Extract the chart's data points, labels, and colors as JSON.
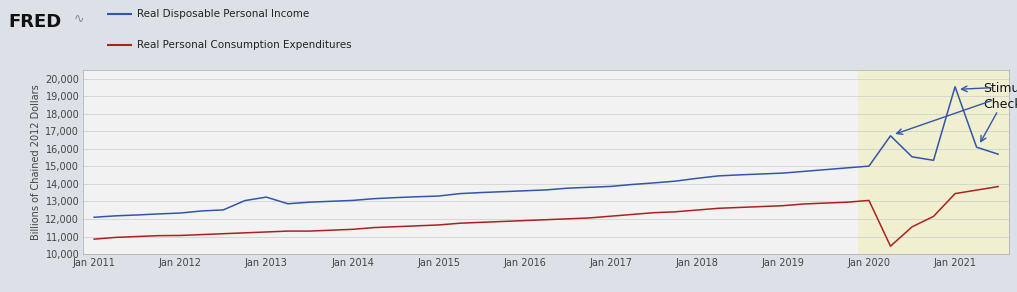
{
  "ylabel": "Billions of Chained 2012 Dollars",
  "ylim": [
    10000,
    20500
  ],
  "yticks": [
    10000,
    11000,
    12000,
    13000,
    14000,
    15000,
    16000,
    17000,
    18000,
    19000,
    20000
  ],
  "line1_label": "Real Disposable Personal Income",
  "line1_color": "#3355aa",
  "line2_label": "Real Personal Consumption Expenditures",
  "line2_color": "#aa2222",
  "background_color": "#dce1e8",
  "plot_bg_color": "#f2f2f2",
  "highlight_bg_color": "#f0f0d0",
  "stimulus_text": "Stimulus\nChecks",
  "income": [
    12100,
    12180,
    12230,
    12290,
    12340,
    12460,
    12520,
    13050,
    13250,
    12870,
    12960,
    13010,
    13060,
    13160,
    13220,
    13270,
    13310,
    13450,
    13510,
    13560,
    13610,
    13660,
    13760,
    13810,
    13860,
    13970,
    14060,
    14160,
    14320,
    14460,
    14520,
    14570,
    14620,
    14720,
    14820,
    14920,
    15020,
    16750,
    15550,
    15350,
    19550,
    16100,
    15700
  ],
  "expenditures": [
    10850,
    10950,
    11000,
    11050,
    11060,
    11110,
    11160,
    11210,
    11260,
    11310,
    11310,
    11360,
    11410,
    11510,
    11560,
    11610,
    11660,
    11760,
    11810,
    11860,
    11910,
    11960,
    12010,
    12060,
    12160,
    12260,
    12360,
    12410,
    12510,
    12610,
    12660,
    12710,
    12760,
    12860,
    12910,
    12960,
    13060,
    10450,
    11550,
    12150,
    13450,
    13650,
    13850
  ],
  "xtick_labels": [
    "Jan 2011",
    "Jan 2012",
    "Jan 2013",
    "Jan 2014",
    "Jan 2015",
    "Jan 2016",
    "Jan 2017",
    "Jan 2018",
    "Jan 2019",
    "Jan 2020",
    "Jan 2021"
  ],
  "xtick_positions": [
    0,
    4,
    8,
    12,
    16,
    20,
    24,
    28,
    32,
    36,
    40
  ]
}
